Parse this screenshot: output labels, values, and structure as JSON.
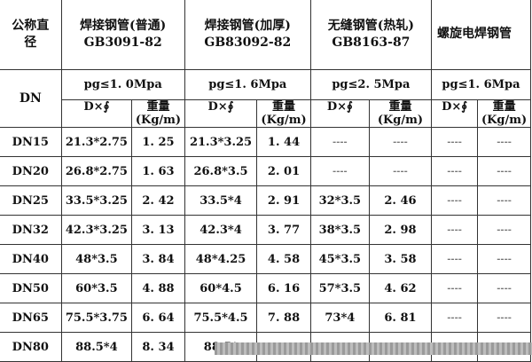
{
  "header": {
    "nominal": "公称直径",
    "dn": "DN",
    "groups": [
      {
        "name": "焊接钢管(普通)",
        "standard": "GB3091-82",
        "pressure": "pg≤1. 0Mpa"
      },
      {
        "name": "焊接钢管(加厚)",
        "standard": "GB83092-82",
        "pressure": "pg≤1. 6Mpa"
      },
      {
        "name": "无缝钢管(热轧)",
        "standard": "GB8163-87",
        "pressure": "pg≤2. 5Mpa"
      },
      {
        "name": "螺旋电焊钢管",
        "standard": "",
        "pressure": "pg≤1. 6Mpa"
      }
    ],
    "dim_label": "D×∮",
    "weight_label": "重量",
    "weight_unit": "(Kg/m)"
  },
  "rows": [
    [
      "DN15",
      "21.3*2.75",
      "1. 25",
      "21.3*3.25",
      "1. 44",
      "----",
      "----",
      "----",
      "----"
    ],
    [
      "DN20",
      "26.8*2.75",
      "1. 63",
      "26.8*3.5",
      "2. 01",
      "----",
      "----",
      "----",
      "----"
    ],
    [
      "DN25",
      "33.5*3.25",
      "2. 42",
      "33.5*4",
      "2. 91",
      "32*3.5",
      "2. 46",
      "----",
      "----"
    ],
    [
      "DN32",
      "42.3*3.25",
      "3. 13",
      "42.3*4",
      "3. 77",
      "38*3.5",
      "2. 98",
      "----",
      "----"
    ],
    [
      "DN40",
      "48*3.5",
      "3. 84",
      "48*4.25",
      "4. 58",
      "45*3.5",
      "3. 58",
      "----",
      "----"
    ],
    [
      "DN50",
      "60*3.5",
      "4. 88",
      "60*4.5",
      "6. 16",
      "57*3.5",
      "4. 62",
      "----",
      "----"
    ],
    [
      "DN65",
      "75.5*3.75",
      "6. 64",
      "75.5*4.5",
      "7. 88",
      "73*4",
      "6. 81",
      "----",
      "----"
    ],
    [
      "DN80",
      "88.5*4",
      "8. 34",
      "88.5*",
      "",
      "",
      "",
      "",
      ""
    ]
  ]
}
